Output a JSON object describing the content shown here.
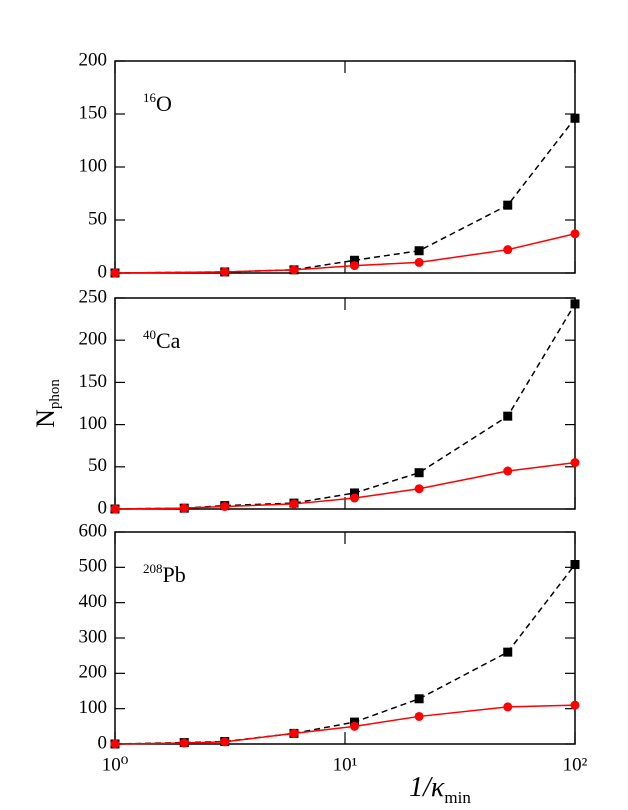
{
  "chart_data": [
    {
      "type": "line",
      "annotation": {
        "superscript": "16",
        "text": "O"
      },
      "xscale": "log",
      "xlim": [
        1,
        100
      ],
      "xticks": [
        1,
        10,
        100
      ],
      "show_xtick_labels": false,
      "ylim": [
        0,
        200
      ],
      "yticks": [
        0,
        50,
        100,
        150,
        200
      ],
      "series": [
        {
          "color": "#000000",
          "linestyle": "dashed",
          "marker": "square",
          "x": [
            1,
            3,
            6,
            11,
            21,
            51,
            100
          ],
          "values": [
            0,
            1,
            3,
            12,
            21,
            64,
            146
          ]
        },
        {
          "color": "#ff0000",
          "linestyle": "solid",
          "marker": "circle",
          "x": [
            1,
            3,
            6,
            11,
            21,
            51,
            100
          ],
          "values": [
            0,
            1,
            3,
            7,
            10,
            22,
            37
          ]
        }
      ]
    },
    {
      "type": "line",
      "annotation": {
        "superscript": "40",
        "text": "Ca"
      },
      "ylabel": {
        "text": "N",
        "subscript": "phon"
      },
      "xscale": "log",
      "xlim": [
        1,
        100
      ],
      "xticks": [
        1,
        10,
        100
      ],
      "show_xtick_labels": false,
      "ylim": [
        0,
        250
      ],
      "yticks": [
        0,
        50,
        100,
        150,
        200,
        250
      ],
      "series": [
        {
          "color": "#000000",
          "linestyle": "dashed",
          "marker": "square",
          "x": [
            1,
            2,
            3,
            6,
            11,
            21,
            51,
            100
          ],
          "values": [
            0,
            1,
            4,
            7,
            19,
            43,
            110,
            243
          ]
        },
        {
          "color": "#ff0000",
          "linestyle": "solid",
          "marker": "circle",
          "x": [
            1,
            2,
            3,
            6,
            11,
            21,
            51,
            100
          ],
          "values": [
            0,
            1,
            3,
            6,
            13,
            24,
            45,
            55
          ]
        }
      ]
    },
    {
      "type": "line",
      "annotation": {
        "superscript": "208",
        "text": "Pb"
      },
      "xlabel": {
        "text": "1/κ",
        "subscript": "min"
      },
      "xscale": "log",
      "xlim": [
        1,
        100
      ],
      "xticks": [
        {
          "value": 1,
          "label": "10⁰"
        },
        {
          "value": 10,
          "label": "10¹"
        },
        {
          "value": 100,
          "label": "10²"
        }
      ],
      "show_xtick_labels": true,
      "ylim": [
        0,
        600
      ],
      "yticks": [
        0,
        100,
        200,
        300,
        400,
        500,
        600
      ],
      "series": [
        {
          "color": "#000000",
          "linestyle": "dashed",
          "marker": "square",
          "x": [
            1,
            2,
            3,
            6,
            11,
            21,
            51,
            100
          ],
          "values": [
            0,
            4,
            7,
            30,
            62,
            128,
            260,
            508
          ]
        },
        {
          "color": "#ff0000",
          "linestyle": "solid",
          "marker": "circle",
          "x": [
            1,
            2,
            3,
            6,
            11,
            21,
            51,
            100
          ],
          "values": [
            0,
            3,
            6,
            30,
            50,
            78,
            105,
            110
          ]
        }
      ]
    }
  ]
}
